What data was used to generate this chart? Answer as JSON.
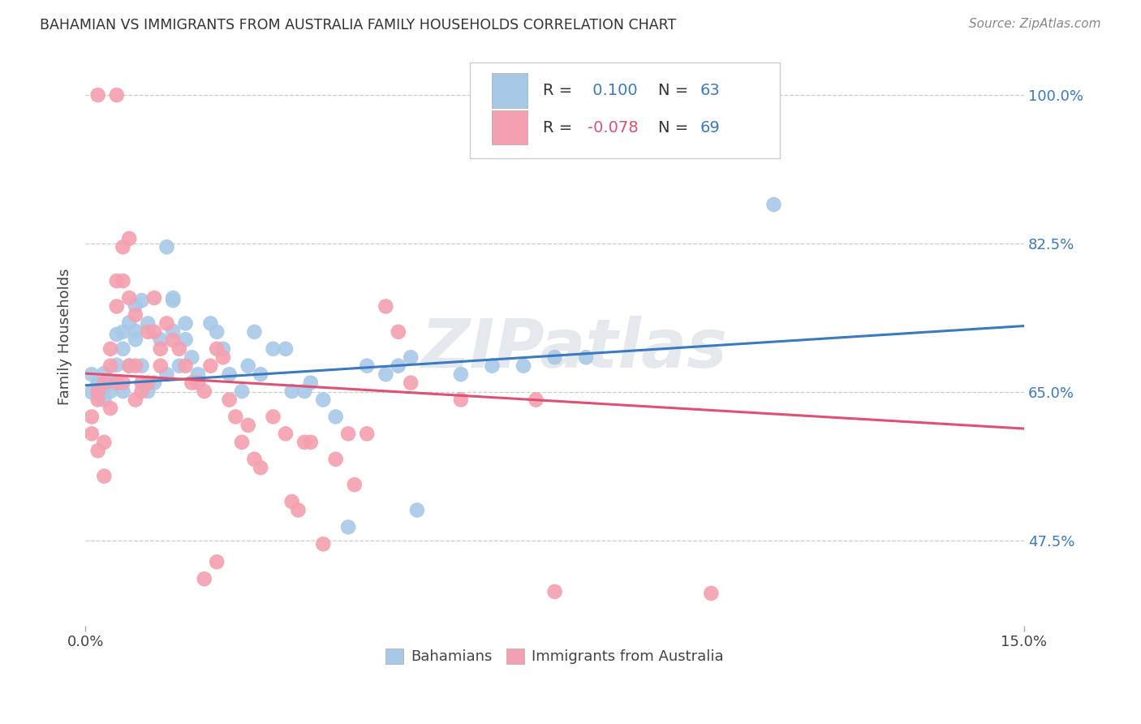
{
  "title": "BAHAMIAN VS IMMIGRANTS FROM AUSTRALIA FAMILY HOUSEHOLDS CORRELATION CHART",
  "source": "Source: ZipAtlas.com",
  "ylabel": "Family Households",
  "blue_R": 0.1,
  "blue_N": 63,
  "pink_R": -0.078,
  "pink_N": 69,
  "blue_color": "#a8c8e8",
  "pink_color": "#f4a0b0",
  "blue_line_color": "#3a7abf",
  "pink_line_color": "#e05070",
  "blue_scatter": [
    [
      0.001,
      0.65
    ],
    [
      0.002,
      0.66
    ],
    [
      0.002,
      0.648
    ],
    [
      0.003,
      0.672
    ],
    [
      0.003,
      0.655
    ],
    [
      0.004,
      0.662
    ],
    [
      0.004,
      0.651
    ],
    [
      0.005,
      0.682
    ],
    [
      0.005,
      0.718
    ],
    [
      0.005,
      0.661
    ],
    [
      0.006,
      0.721
    ],
    [
      0.006,
      0.701
    ],
    [
      0.007,
      0.732
    ],
    [
      0.007,
      0.681
    ],
    [
      0.008,
      0.752
    ],
    [
      0.008,
      0.722
    ],
    [
      0.008,
      0.712
    ],
    [
      0.009,
      0.758
    ],
    [
      0.009,
      0.681
    ],
    [
      0.01,
      0.651
    ],
    [
      0.01,
      0.731
    ],
    [
      0.011,
      0.661
    ],
    [
      0.012,
      0.712
    ],
    [
      0.013,
      0.671
    ],
    [
      0.014,
      0.758
    ],
    [
      0.014,
      0.722
    ],
    [
      0.014,
      0.761
    ],
    [
      0.015,
      0.681
    ],
    [
      0.016,
      0.712
    ],
    [
      0.016,
      0.731
    ],
    [
      0.017,
      0.691
    ],
    [
      0.018,
      0.671
    ],
    [
      0.02,
      0.731
    ],
    [
      0.021,
      0.721
    ],
    [
      0.022,
      0.701
    ],
    [
      0.023,
      0.671
    ],
    [
      0.025,
      0.651
    ],
    [
      0.026,
      0.681
    ],
    [
      0.027,
      0.721
    ],
    [
      0.028,
      0.671
    ],
    [
      0.03,
      0.701
    ],
    [
      0.032,
      0.701
    ],
    [
      0.033,
      0.651
    ],
    [
      0.035,
      0.651
    ],
    [
      0.036,
      0.661
    ],
    [
      0.038,
      0.641
    ],
    [
      0.04,
      0.621
    ],
    [
      0.042,
      0.491
    ],
    [
      0.045,
      0.681
    ],
    [
      0.048,
      0.671
    ],
    [
      0.05,
      0.681
    ],
    [
      0.052,
      0.691
    ],
    [
      0.053,
      0.511
    ],
    [
      0.06,
      0.671
    ],
    [
      0.065,
      0.681
    ],
    [
      0.07,
      0.681
    ],
    [
      0.075,
      0.691
    ],
    [
      0.08,
      0.691
    ],
    [
      0.11,
      0.871
    ],
    [
      0.001,
      0.671
    ],
    [
      0.003,
      0.641
    ],
    [
      0.006,
      0.651
    ],
    [
      0.013,
      0.821
    ]
  ],
  "pink_scatter": [
    [
      0.001,
      0.621
    ],
    [
      0.001,
      0.601
    ],
    [
      0.002,
      0.641
    ],
    [
      0.002,
      0.651
    ],
    [
      0.002,
      0.581
    ],
    [
      0.003,
      0.661
    ],
    [
      0.003,
      0.591
    ],
    [
      0.003,
      0.551
    ],
    [
      0.004,
      0.701
    ],
    [
      0.004,
      0.681
    ],
    [
      0.004,
      0.631
    ],
    [
      0.005,
      0.781
    ],
    [
      0.005,
      0.751
    ],
    [
      0.005,
      0.661
    ],
    [
      0.006,
      0.821
    ],
    [
      0.006,
      0.781
    ],
    [
      0.006,
      0.661
    ],
    [
      0.007,
      0.831
    ],
    [
      0.007,
      0.761
    ],
    [
      0.007,
      0.681
    ],
    [
      0.008,
      0.741
    ],
    [
      0.008,
      0.681
    ],
    [
      0.008,
      0.641
    ],
    [
      0.009,
      0.661
    ],
    [
      0.009,
      0.651
    ],
    [
      0.01,
      0.721
    ],
    [
      0.01,
      0.661
    ],
    [
      0.011,
      0.761
    ],
    [
      0.011,
      0.721
    ],
    [
      0.012,
      0.701
    ],
    [
      0.012,
      0.681
    ],
    [
      0.013,
      0.731
    ],
    [
      0.014,
      0.711
    ],
    [
      0.015,
      0.701
    ],
    [
      0.016,
      0.681
    ],
    [
      0.017,
      0.661
    ],
    [
      0.018,
      0.661
    ],
    [
      0.019,
      0.651
    ],
    [
      0.02,
      0.681
    ],
    [
      0.021,
      0.701
    ],
    [
      0.022,
      0.691
    ],
    [
      0.023,
      0.641
    ],
    [
      0.024,
      0.621
    ],
    [
      0.025,
      0.591
    ],
    [
      0.026,
      0.611
    ],
    [
      0.027,
      0.571
    ],
    [
      0.028,
      0.561
    ],
    [
      0.03,
      0.621
    ],
    [
      0.032,
      0.601
    ],
    [
      0.033,
      0.521
    ],
    [
      0.034,
      0.511
    ],
    [
      0.035,
      0.591
    ],
    [
      0.036,
      0.591
    ],
    [
      0.038,
      0.471
    ],
    [
      0.04,
      0.571
    ],
    [
      0.042,
      0.601
    ],
    [
      0.043,
      0.541
    ],
    [
      0.045,
      0.601
    ],
    [
      0.048,
      0.751
    ],
    [
      0.05,
      0.721
    ],
    [
      0.052,
      0.661
    ],
    [
      0.06,
      0.641
    ],
    [
      0.072,
      0.641
    ],
    [
      0.075,
      0.415
    ],
    [
      0.1,
      0.413
    ],
    [
      0.002,
      1.0
    ],
    [
      0.005,
      1.0
    ],
    [
      0.019,
      0.43
    ],
    [
      0.021,
      0.45
    ]
  ],
  "xmin": 0.0,
  "xmax": 0.15,
  "ymin": 0.375,
  "ymax": 1.055,
  "blue_trend_x": [
    0.0,
    0.15
  ],
  "blue_trend_y": [
    0.658,
    0.728
  ],
  "pink_trend_x": [
    0.0,
    0.15
  ],
  "pink_trend_y": [
    0.672,
    0.607
  ],
  "ytick_vals": [
    0.475,
    0.65,
    0.825,
    1.0
  ],
  "ytick_labels": [
    "47.5%",
    "65.0%",
    "82.5%",
    "100.0%"
  ],
  "grid_color": "#cccccc",
  "watermark": "ZIPatlas",
  "legend_text_color": "#3a7abf",
  "legend_R_label_color_blue": "#3a7abf",
  "legend_R_label_color_pink": "#e05070",
  "background_color": "#ffffff"
}
